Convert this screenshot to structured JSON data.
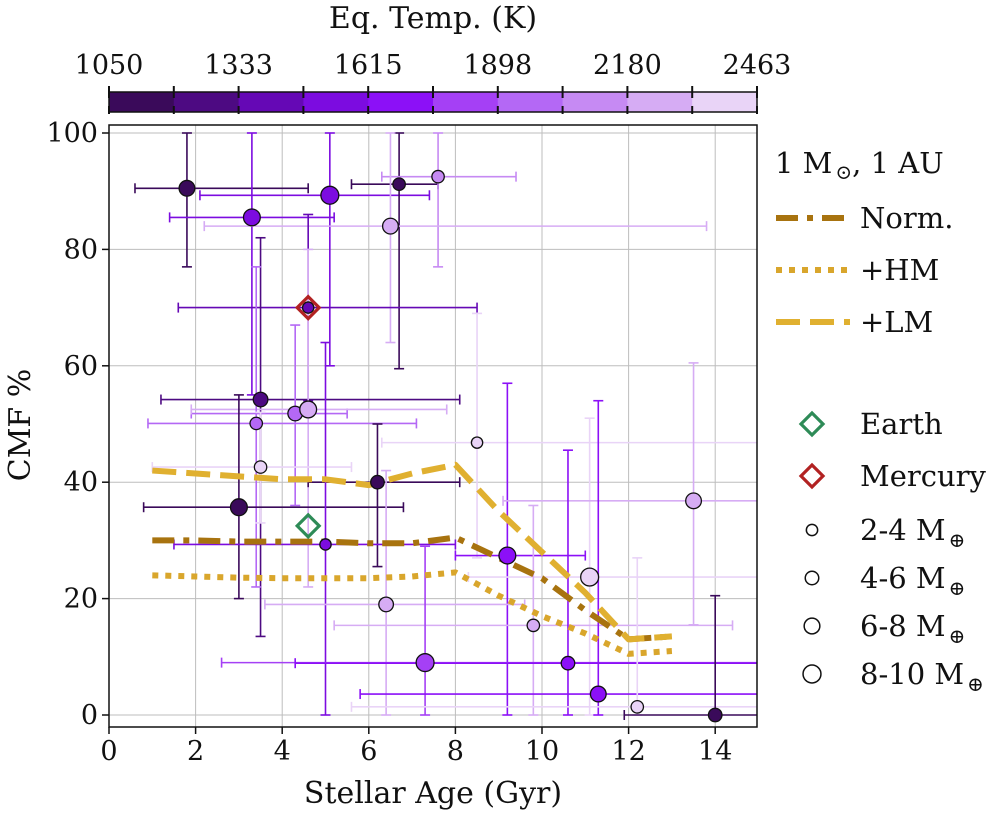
{
  "chart_data": {
    "type": "scatter",
    "xlabel": "Stellar Age (Gyr)",
    "ylabel": "CMF %",
    "xlim": [
      0,
      15
    ],
    "ylim": [
      -2,
      101
    ],
    "xticks": [
      "0",
      "2",
      "4",
      "6",
      "8",
      "10",
      "12",
      "14"
    ],
    "yticks": [
      "0",
      "20",
      "40",
      "60",
      "80",
      "100"
    ],
    "grid": true,
    "colorbar": {
      "title": "Eq. Temp. (K)",
      "ticks": [
        "1050",
        "1333",
        "1615",
        "1898",
        "2180",
        "2463"
      ],
      "range": [
        1050,
        2463
      ],
      "colors": [
        "#3a0a5a",
        "#4d0a82",
        "#6508b5",
        "#7c0ce0",
        "#8c10f7",
        "#a540f5",
        "#b468f5",
        "#c68af3",
        "#d6acf4",
        "#e9d4f7"
      ]
    },
    "points": [
      {
        "age": 1.8,
        "age_lo": 0.6,
        "age_hi": 4.6,
        "cmf": 90.5,
        "cmf_lo": 77,
        "cmf_hi": 100,
        "temp": 1150,
        "mass": 7
      },
      {
        "age": 3.3,
        "age_lo": 1.4,
        "age_hi": 5.2,
        "cmf": 85.5,
        "cmf_lo": 55,
        "cmf_hi": 100,
        "temp": 1520,
        "mass": 8
      },
      {
        "age": 5.1,
        "age_lo": 2.1,
        "age_hi": 7.4,
        "cmf": 89.3,
        "cmf_lo": 60,
        "cmf_hi": 100,
        "temp": 1540,
        "mass": 9
      },
      {
        "age": 6.7,
        "age_lo": 5.6,
        "age_hi": 7.6,
        "cmf": 91.2,
        "cmf_lo": 59.5,
        "cmf_hi": 100,
        "temp": 1100,
        "mass": 4
      },
      {
        "age": 7.6,
        "age_lo": 6.3,
        "age_hi": 9.4,
        "cmf": 92.5,
        "cmf_lo": 77,
        "cmf_hi": 100,
        "temp": 2150,
        "mass": 4
      },
      {
        "age": 6.5,
        "age_lo": 2.2,
        "age_hi": 13.8,
        "cmf": 84.0,
        "cmf_lo": 64,
        "cmf_hi": 100,
        "temp": 2270,
        "mass": 7
      },
      {
        "age": 4.6,
        "age_lo": 1.6,
        "age_hi": 8.5,
        "cmf": 70.0,
        "cmf_lo": 54,
        "cmf_hi": 86,
        "temp": 1380,
        "mass": 3
      },
      {
        "age": 3.5,
        "age_lo": 1.2,
        "age_hi": 8.1,
        "cmf": 54.2,
        "cmf_lo": 13.5,
        "cmf_hi": 82,
        "temp": 1250,
        "mass": 6
      },
      {
        "age": 4.3,
        "age_lo": 1.9,
        "age_hi": 5.5,
        "cmf": 51.8,
        "cmf_lo": 36,
        "cmf_hi": 67,
        "temp": 1900,
        "mass": 6
      },
      {
        "age": 4.6,
        "age_lo": 1.9,
        "age_hi": 7.8,
        "cmf": 52.5,
        "cmf_lo": 22,
        "cmf_hi": 80,
        "temp": 2280,
        "mass": 8
      },
      {
        "age": 3.4,
        "age_lo": 0.9,
        "age_hi": 7.1,
        "cmf": 50.1,
        "cmf_lo": 22,
        "cmf_hi": 77,
        "temp": 1950,
        "mass": 4
      },
      {
        "age": 8.5,
        "age_lo": 6.3,
        "age_hi": 15.0,
        "cmf": 46.8,
        "cmf_lo": 27,
        "cmf_hi": 69,
        "temp": 2330,
        "mass": 3
      },
      {
        "age": 3.5,
        "age_lo": 1.0,
        "age_hi": 5.6,
        "cmf": 42.6,
        "cmf_lo": 33,
        "cmf_hi": 52,
        "temp": 2380,
        "mass": 4
      },
      {
        "age": 6.2,
        "age_lo": 4.6,
        "age_hi": 8.1,
        "cmf": 40.0,
        "cmf_lo": 25.5,
        "cmf_hi": 50,
        "temp": 1180,
        "mass": 5
      },
      {
        "age": 3.0,
        "age_lo": 0.8,
        "age_hi": 6.8,
        "cmf": 35.7,
        "cmf_lo": 20,
        "cmf_hi": 55,
        "temp": 1080,
        "mass": 8
      },
      {
        "age": 5.0,
        "age_lo": 1.5,
        "age_hi": 8.0,
        "cmf": 29.3,
        "cmf_lo": 0,
        "cmf_hi": 64,
        "temp": 1550,
        "mass": 3
      },
      {
        "age": 9.2,
        "age_lo": 8.0,
        "age_hi": 11.0,
        "cmf": 27.4,
        "cmf_lo": 0,
        "cmf_hi": 57,
        "temp": 1700,
        "mass": 8
      },
      {
        "age": 11.1,
        "age_lo": 8.3,
        "age_hi": 15.0,
        "cmf": 23.7,
        "cmf_lo": 0,
        "cmf_hi": 51,
        "temp": 2400,
        "mass": 9
      },
      {
        "age": 13.5,
        "age_lo": 9.1,
        "age_hi": 15.0,
        "cmf": 36.8,
        "cmf_lo": 15.5,
        "cmf_hi": 60.5,
        "temp": 2290,
        "mass": 7
      },
      {
        "age": 6.4,
        "age_lo": 3.6,
        "age_hi": 9.6,
        "cmf": 19.0,
        "cmf_lo": 0,
        "cmf_hi": 42,
        "temp": 2250,
        "mass": 6
      },
      {
        "age": 9.8,
        "age_lo": 5.2,
        "age_hi": 14.4,
        "cmf": 15.4,
        "cmf_lo": 0,
        "cmf_hi": 36,
        "temp": 2310,
        "mass": 4
      },
      {
        "age": 7.3,
        "age_lo": 2.6,
        "age_hi": 15.0,
        "cmf": 9.0,
        "cmf_lo": 0,
        "cmf_hi": 29,
        "temp": 1880,
        "mass": 9
      },
      {
        "age": 10.6,
        "age_lo": 4.3,
        "age_hi": 15.0,
        "cmf": 8.9,
        "cmf_lo": 0,
        "cmf_hi": 45.5,
        "temp": 1640,
        "mass": 5
      },
      {
        "age": 11.3,
        "age_lo": 5.8,
        "age_hi": 15.0,
        "cmf": 3.6,
        "cmf_lo": 0,
        "cmf_hi": 54,
        "temp": 1660,
        "mass": 7
      },
      {
        "age": 12.2,
        "age_lo": 5.6,
        "age_hi": 15.0,
        "cmf": 1.4,
        "cmf_lo": 0,
        "cmf_hi": 27,
        "temp": 2400,
        "mass": 4
      },
      {
        "age": 14.0,
        "age_lo": 11.9,
        "age_hi": 15.0,
        "cmf": 0.0,
        "cmf_lo": 0,
        "cmf_hi": 20.5,
        "temp": 1180,
        "mass": 5
      }
    ],
    "planets": [
      {
        "name": "Earth",
        "age": 4.6,
        "cmf": 32.5,
        "color": "#2e8b57"
      },
      {
        "name": "Mercury",
        "age": 4.6,
        "cmf": 70.0,
        "color": "#b22222"
      }
    ],
    "models": [
      {
        "name": "Norm.",
        "color": "#a8730f",
        "style": "dashdot",
        "x": [
          1,
          2,
          3,
          4,
          5,
          6,
          7,
          8,
          9,
          10,
          11,
          12,
          13
        ],
        "y": [
          30,
          30,
          29.8,
          29.8,
          29.8,
          29.5,
          29.5,
          30.5,
          27,
          23.5,
          18,
          13,
          13.5
        ]
      },
      {
        "name": "+HM",
        "color": "#d9a62c",
        "style": "dotted",
        "x": [
          1,
          2,
          3,
          4,
          5,
          6,
          7,
          8,
          9,
          10,
          11,
          12,
          13
        ],
        "y": [
          24,
          23.8,
          23.6,
          23.5,
          23.5,
          23.5,
          23.8,
          24.5,
          20.5,
          17,
          14,
          10.5,
          11
        ]
      },
      {
        "name": "+LM",
        "color": "#e0b030",
        "style": "dashed",
        "x": [
          1,
          2,
          3,
          4,
          5,
          6,
          7,
          8,
          9,
          10,
          11,
          12,
          13
        ],
        "y": [
          42,
          41.5,
          41,
          40.5,
          40.5,
          39.5,
          41.5,
          43,
          35,
          28,
          21,
          13,
          13.5
        ]
      }
    ],
    "legend": {
      "header": "1 M",
      "header_sub": "⊙",
      "header_suffix": ", 1 AU",
      "mass_bins": [
        {
          "label": "2-4 M",
          "sub": "⊕",
          "mass": 3
        },
        {
          "label": "4-6 M",
          "sub": "⊕",
          "mass": 5
        },
        {
          "label": "6-8 M",
          "sub": "⊕",
          "mass": 7
        },
        {
          "label": "8-10 M",
          "sub": "⊕",
          "mass": 9
        }
      ]
    }
  }
}
